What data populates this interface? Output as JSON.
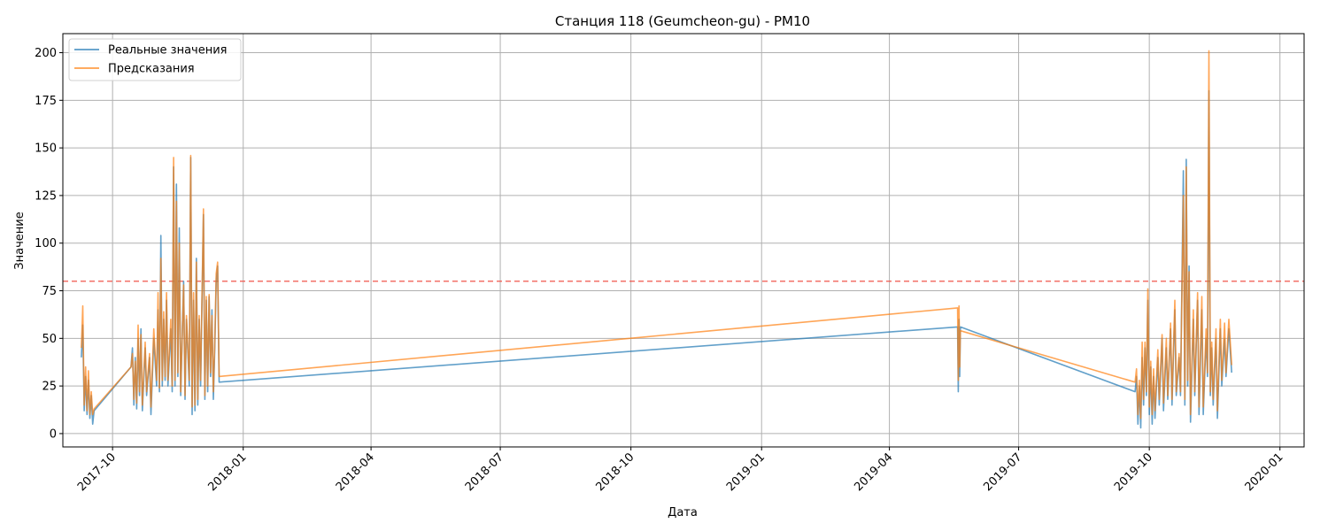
{
  "chart_data": {
    "type": "line",
    "title": "Станция 118 (Geumcheon-gu) - PM10",
    "xlabel": "Дата",
    "ylabel": "Значение",
    "xlim": [
      "2017-08-27",
      "2020-01-18"
    ],
    "ylim": [
      -7,
      210
    ],
    "x_ticks": [
      "2017-10-01",
      "2018-01-01",
      "2018-04-01",
      "2018-07-01",
      "2018-10-01",
      "2019-01-01",
      "2019-04-01",
      "2019-07-01",
      "2019-10-01",
      "2020-01-01"
    ],
    "x_tick_labels": [
      "2017-10",
      "2018-01",
      "2018-04",
      "2018-07",
      "2018-10",
      "2019-01",
      "2019-04",
      "2019-07",
      "2019-10",
      "2020-01"
    ],
    "y_ticks": [
      0,
      25,
      50,
      75,
      100,
      125,
      150,
      175,
      200
    ],
    "y_tick_labels": [
      "0",
      "25",
      "50",
      "75",
      "100",
      "125",
      "150",
      "175",
      "200"
    ],
    "grid": true,
    "legend_position": "top-left",
    "threshold": {
      "value": 80,
      "color": "#f15a50",
      "style": "dashed"
    },
    "series": [
      {
        "name": "Реальные значения",
        "color": "#1f77b4",
        "points": [
          [
            "2017-09-09",
            40
          ],
          [
            "2017-09-10",
            57
          ],
          [
            "2017-09-11",
            12
          ],
          [
            "2017-09-12",
            30
          ],
          [
            "2017-09-13",
            10
          ],
          [
            "2017-09-14",
            28
          ],
          [
            "2017-09-15",
            8
          ],
          [
            "2017-09-16",
            20
          ],
          [
            "2017-09-17",
            5
          ],
          [
            "2017-09-18",
            12
          ],
          [
            "2017-10-14",
            35
          ],
          [
            "2017-10-15",
            45
          ],
          [
            "2017-10-16",
            15
          ],
          [
            "2017-10-17",
            40
          ],
          [
            "2017-10-18",
            13
          ],
          [
            "2017-10-19",
            50
          ],
          [
            "2017-10-20",
            20
          ],
          [
            "2017-10-21",
            55
          ],
          [
            "2017-10-22",
            12
          ],
          [
            "2017-10-24",
            45
          ],
          [
            "2017-10-25",
            20
          ],
          [
            "2017-10-27",
            40
          ],
          [
            "2017-10-28",
            10
          ],
          [
            "2017-10-30",
            50
          ],
          [
            "2017-11-01",
            25
          ],
          [
            "2017-11-02",
            65
          ],
          [
            "2017-11-03",
            22
          ],
          [
            "2017-11-04",
            104
          ],
          [
            "2017-11-05",
            25
          ],
          [
            "2017-11-06",
            60
          ],
          [
            "2017-11-07",
            28
          ],
          [
            "2017-11-08",
            70
          ],
          [
            "2017-11-09",
            25
          ],
          [
            "2017-11-11",
            55
          ],
          [
            "2017-11-12",
            22
          ],
          [
            "2017-11-13",
            140
          ],
          [
            "2017-11-14",
            25
          ],
          [
            "2017-11-15",
            131
          ],
          [
            "2017-11-16",
            30
          ],
          [
            "2017-11-17",
            108
          ],
          [
            "2017-11-18",
            20
          ],
          [
            "2017-11-20",
            80
          ],
          [
            "2017-11-21",
            18
          ],
          [
            "2017-11-22",
            60
          ],
          [
            "2017-11-24",
            25
          ],
          [
            "2017-11-25",
            145
          ],
          [
            "2017-11-26",
            10
          ],
          [
            "2017-11-27",
            70
          ],
          [
            "2017-11-28",
            12
          ],
          [
            "2017-11-29",
            92
          ],
          [
            "2017-11-30",
            15
          ],
          [
            "2017-12-01",
            60
          ],
          [
            "2017-12-02",
            25
          ],
          [
            "2017-12-04",
            115
          ],
          [
            "2017-12-05",
            18
          ],
          [
            "2017-12-06",
            70
          ],
          [
            "2017-12-07",
            22
          ],
          [
            "2017-12-08",
            72
          ],
          [
            "2017-12-09",
            30
          ],
          [
            "2017-12-10",
            65
          ],
          [
            "2017-12-11",
            18
          ],
          [
            "2017-12-12",
            45
          ],
          [
            "2017-12-13",
            80
          ],
          [
            "2017-12-14",
            88
          ],
          [
            "2017-12-15",
            27
          ],
          [
            "2019-05-19",
            56
          ],
          [
            "2019-05-19T12:00",
            22
          ],
          [
            "2019-05-20",
            60
          ],
          [
            "2019-05-20T12:00",
            30
          ],
          [
            "2019-05-21",
            56
          ],
          [
            "2019-09-21",
            22
          ],
          [
            "2019-09-22",
            30
          ],
          [
            "2019-09-23",
            5
          ],
          [
            "2019-09-24",
            25
          ],
          [
            "2019-09-25",
            3
          ],
          [
            "2019-09-26",
            40
          ],
          [
            "2019-09-27",
            15
          ],
          [
            "2019-09-28",
            45
          ],
          [
            "2019-09-29",
            20
          ],
          [
            "2019-09-30",
            70
          ],
          [
            "2019-10-01",
            10
          ],
          [
            "2019-10-02",
            35
          ],
          [
            "2019-10-03",
            5
          ],
          [
            "2019-10-04",
            30
          ],
          [
            "2019-10-05",
            8
          ],
          [
            "2019-10-07",
            40
          ],
          [
            "2019-10-08",
            15
          ],
          [
            "2019-10-10",
            50
          ],
          [
            "2019-10-11",
            12
          ],
          [
            "2019-10-13",
            45
          ],
          [
            "2019-10-14",
            18
          ],
          [
            "2019-10-16",
            55
          ],
          [
            "2019-10-17",
            15
          ],
          [
            "2019-10-19",
            65
          ],
          [
            "2019-10-20",
            20
          ],
          [
            "2019-10-22",
            40
          ],
          [
            "2019-10-23",
            20
          ],
          [
            "2019-10-25",
            138
          ],
          [
            "2019-10-26",
            15
          ],
          [
            "2019-10-27",
            144
          ],
          [
            "2019-10-28",
            25
          ],
          [
            "2019-10-29",
            88
          ],
          [
            "2019-10-30",
            6
          ],
          [
            "2019-11-01",
            60
          ],
          [
            "2019-11-02",
            20
          ],
          [
            "2019-11-04",
            70
          ],
          [
            "2019-11-05",
            10
          ],
          [
            "2019-11-07",
            65
          ],
          [
            "2019-11-08",
            10
          ],
          [
            "2019-11-10",
            50
          ],
          [
            "2019-11-11",
            30
          ],
          [
            "2019-11-12",
            180
          ],
          [
            "2019-11-13",
            20
          ],
          [
            "2019-11-14",
            45
          ],
          [
            "2019-11-15",
            15
          ],
          [
            "2019-11-17",
            50
          ],
          [
            "2019-11-18",
            8
          ],
          [
            "2019-11-20",
            55
          ],
          [
            "2019-11-21",
            25
          ],
          [
            "2019-11-23",
            50
          ],
          [
            "2019-11-24",
            30
          ],
          [
            "2019-11-26",
            55
          ],
          [
            "2019-11-28",
            32
          ]
        ]
      },
      {
        "name": "Предсказания",
        "color": "#ff7f0e",
        "points": [
          [
            "2017-09-09",
            45
          ],
          [
            "2017-09-10",
            67
          ],
          [
            "2017-09-11",
            15
          ],
          [
            "2017-09-12",
            35
          ],
          [
            "2017-09-13",
            12
          ],
          [
            "2017-09-14",
            33
          ],
          [
            "2017-09-15",
            10
          ],
          [
            "2017-09-16",
            22
          ],
          [
            "2017-09-17",
            10
          ],
          [
            "2017-09-18",
            13
          ],
          [
            "2017-10-14",
            35
          ],
          [
            "2017-10-15",
            42
          ],
          [
            "2017-10-16",
            18
          ],
          [
            "2017-10-17",
            38
          ],
          [
            "2017-10-18",
            16
          ],
          [
            "2017-10-19",
            57
          ],
          [
            "2017-10-20",
            22
          ],
          [
            "2017-10-21",
            52
          ],
          [
            "2017-10-22",
            15
          ],
          [
            "2017-10-24",
            48
          ],
          [
            "2017-10-25",
            22
          ],
          [
            "2017-10-27",
            42
          ],
          [
            "2017-10-28",
            14
          ],
          [
            "2017-10-30",
            55
          ],
          [
            "2017-11-01",
            28
          ],
          [
            "2017-11-02",
            74
          ],
          [
            "2017-11-03",
            24
          ],
          [
            "2017-11-04",
            92
          ],
          [
            "2017-11-05",
            28
          ],
          [
            "2017-11-06",
            64
          ],
          [
            "2017-11-07",
            30
          ],
          [
            "2017-11-08",
            74
          ],
          [
            "2017-11-09",
            28
          ],
          [
            "2017-11-11",
            60
          ],
          [
            "2017-11-12",
            25
          ],
          [
            "2017-11-13",
            145
          ],
          [
            "2017-11-14",
            28
          ],
          [
            "2017-11-15",
            122
          ],
          [
            "2017-11-16",
            32
          ],
          [
            "2017-11-17",
            100
          ],
          [
            "2017-11-18",
            22
          ],
          [
            "2017-11-20",
            78
          ],
          [
            "2017-11-21",
            20
          ],
          [
            "2017-11-22",
            62
          ],
          [
            "2017-11-24",
            28
          ],
          [
            "2017-11-25",
            146
          ],
          [
            "2017-11-26",
            14
          ],
          [
            "2017-11-27",
            74
          ],
          [
            "2017-11-28",
            15
          ],
          [
            "2017-11-29",
            90
          ],
          [
            "2017-11-30",
            18
          ],
          [
            "2017-12-01",
            62
          ],
          [
            "2017-12-02",
            28
          ],
          [
            "2017-12-04",
            118
          ],
          [
            "2017-12-05",
            20
          ],
          [
            "2017-12-06",
            72
          ],
          [
            "2017-12-07",
            25
          ],
          [
            "2017-12-08",
            73
          ],
          [
            "2017-12-09",
            32
          ],
          [
            "2017-12-10",
            62
          ],
          [
            "2017-12-11",
            22
          ],
          [
            "2017-12-12",
            48
          ],
          [
            "2017-12-13",
            84
          ],
          [
            "2017-12-14",
            90
          ],
          [
            "2017-12-15",
            30
          ],
          [
            "2019-05-19",
            66
          ],
          [
            "2019-05-19T12:00",
            28
          ],
          [
            "2019-05-20",
            67
          ],
          [
            "2019-05-20T12:00",
            35
          ],
          [
            "2019-05-21",
            54
          ],
          [
            "2019-09-21",
            27
          ],
          [
            "2019-09-22",
            34
          ],
          [
            "2019-09-23",
            10
          ],
          [
            "2019-09-24",
            28
          ],
          [
            "2019-09-25",
            8
          ],
          [
            "2019-09-26",
            48
          ],
          [
            "2019-09-27",
            18
          ],
          [
            "2019-09-28",
            48
          ],
          [
            "2019-09-29",
            22
          ],
          [
            "2019-09-30",
            76
          ],
          [
            "2019-10-01",
            14
          ],
          [
            "2019-10-02",
            38
          ],
          [
            "2019-10-03",
            10
          ],
          [
            "2019-10-04",
            34
          ],
          [
            "2019-10-05",
            12
          ],
          [
            "2019-10-07",
            44
          ],
          [
            "2019-10-08",
            18
          ],
          [
            "2019-10-10",
            52
          ],
          [
            "2019-10-11",
            16
          ],
          [
            "2019-10-13",
            50
          ],
          [
            "2019-10-14",
            20
          ],
          [
            "2019-10-16",
            58
          ],
          [
            "2019-10-17",
            18
          ],
          [
            "2019-10-19",
            70
          ],
          [
            "2019-10-20",
            22
          ],
          [
            "2019-10-22",
            42
          ],
          [
            "2019-10-23",
            22
          ],
          [
            "2019-10-25",
            125
          ],
          [
            "2019-10-26",
            18
          ],
          [
            "2019-10-27",
            140
          ],
          [
            "2019-10-28",
            28
          ],
          [
            "2019-10-29",
            85
          ],
          [
            "2019-10-30",
            10
          ],
          [
            "2019-11-01",
            65
          ],
          [
            "2019-11-02",
            22
          ],
          [
            "2019-11-04",
            74
          ],
          [
            "2019-11-05",
            14
          ],
          [
            "2019-11-07",
            72
          ],
          [
            "2019-11-08",
            14
          ],
          [
            "2019-11-10",
            55
          ],
          [
            "2019-11-11",
            32
          ],
          [
            "2019-11-12",
            201
          ],
          [
            "2019-11-13",
            22
          ],
          [
            "2019-11-14",
            48
          ],
          [
            "2019-11-15",
            18
          ],
          [
            "2019-11-17",
            55
          ],
          [
            "2019-11-18",
            12
          ],
          [
            "2019-11-20",
            60
          ],
          [
            "2019-11-21",
            28
          ],
          [
            "2019-11-23",
            58
          ],
          [
            "2019-11-24",
            32
          ],
          [
            "2019-11-26",
            60
          ],
          [
            "2019-11-28",
            36
          ]
        ]
      }
    ]
  }
}
